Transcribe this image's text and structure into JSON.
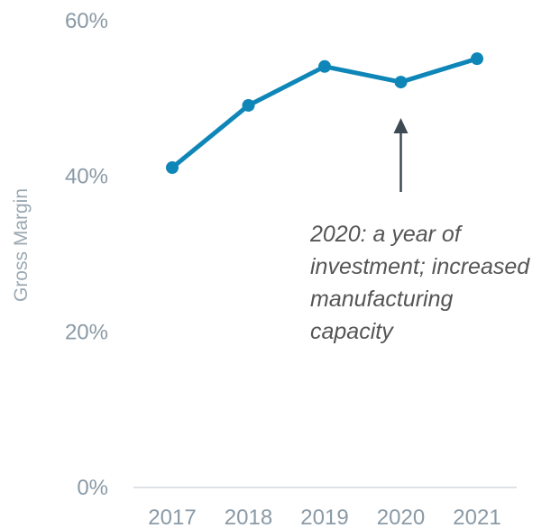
{
  "chart_data": {
    "type": "line",
    "title": "",
    "xlabel": "",
    "ylabel": "Gross Margin",
    "categories": [
      "2017",
      "2018",
      "2019",
      "2020",
      "2021"
    ],
    "series": [
      {
        "values": [
          41,
          49,
          54,
          52,
          55
        ]
      }
    ],
    "ylim": [
      0,
      60
    ],
    "yticks": [
      0,
      20,
      40,
      60
    ],
    "ytick_labels": [
      "0%",
      "20%",
      "40%",
      "60%"
    ],
    "grid": false,
    "legend": "none",
    "annotation": {
      "category": "2020",
      "lines": [
        "2020: a year of",
        "investment; increased",
        "manufacturing",
        "capacity"
      ]
    },
    "colors": {
      "series": "#0e86b8",
      "arrow": "#3d4a52",
      "axis": "#d3d9dd",
      "tick_text": "#8a9aa6",
      "ylabel_text": "#9aa8b2",
      "annotation_text": "#555555"
    }
  }
}
